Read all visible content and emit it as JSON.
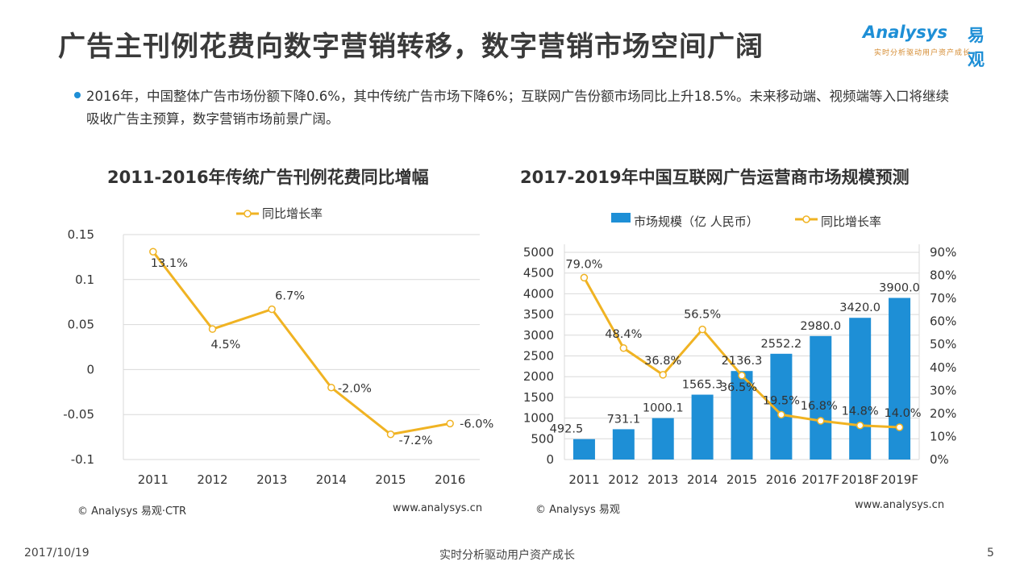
{
  "page": {
    "title": "广告主刊例花费向数字营销转移，数字营销市场空间广阔",
    "bullet": "2016年，中国整体广告市场份额下降0.6%，其中传统广告市场下降6%；互联网广告份额市场同比上升18.5%。未来移动端、视频端等入口将继续吸收广告主预算，数字营销市场前景广阔。"
  },
  "logo": {
    "name_en": "Analysys",
    "name_cn": "易观",
    "tagline": "实时分析驱动用户资产成长"
  },
  "footer": {
    "date": "2017/10/19",
    "center": "实时分析驱动用户资产成长",
    "page_number": "5"
  },
  "colors": {
    "accent": "#1e8fd6",
    "line": "#f0b323",
    "bar": "#1e8fd6",
    "grid": "#d9d9d9"
  },
  "chart_data": [
    {
      "type": "line",
      "title": "2011-2016年传统广告刊例花费同比增幅",
      "legend": [
        "同比增长率"
      ],
      "categories": [
        "2011",
        "2012",
        "2013",
        "2014",
        "2015",
        "2016"
      ],
      "series": [
        {
          "name": "同比增长率",
          "values": [
            0.131,
            0.045,
            0.067,
            -0.02,
            -0.072,
            -0.06
          ]
        }
      ],
      "data_labels": [
        "13.1%",
        "4.5%",
        "6.7%",
        "-2.0%",
        "-7.2%",
        "-6.0%"
      ],
      "y_ticks": [
        "0.15",
        "0.1",
        "0.05",
        "0",
        "-0.05",
        "-0.1"
      ],
      "ylim": [
        -0.1,
        0.15
      ],
      "grid": true,
      "source": "© Analysys 易观·CTR",
      "site": "www.analysys.cn"
    },
    {
      "type": "bar",
      "title": "2017-2019年中国互联网广告运营商市场规模预测",
      "legend": [
        "市场规模（亿 人民币）",
        "同比增长率"
      ],
      "categories": [
        "2011",
        "2012",
        "2013",
        "2014",
        "2015",
        "2016",
        "2017F",
        "2018F",
        "2019F"
      ],
      "series": [
        {
          "name": "市场规模（亿 人民币）",
          "values": [
            492.5,
            731.1,
            1000.1,
            1565.3,
            2136.3,
            2552.2,
            2980.0,
            3420.0,
            3900.0
          ]
        },
        {
          "name": "同比增长率",
          "values": [
            0.79,
            0.484,
            0.368,
            0.565,
            0.365,
            0.195,
            0.168,
            0.148,
            0.14
          ]
        }
      ],
      "bar_labels": [
        "492.5",
        "731.1",
        "1000.1",
        "1565.3",
        "2136.3",
        "2552.2",
        "2980.0",
        "3420.0",
        "3900.0"
      ],
      "line_labels": [
        "79.0%",
        "48.4%",
        "36.8%",
        "56.5%",
        "36.5%",
        "19.5%",
        "16.8%",
        "14.8%",
        "14.0%"
      ],
      "y_ticks": [
        "5000",
        "4500",
        "4000",
        "3500",
        "3000",
        "2500",
        "2000",
        "1500",
        "1000",
        "500",
        "0"
      ],
      "y2_ticks": [
        "90%",
        "80%",
        "70%",
        "60%",
        "50%",
        "40%",
        "30%",
        "20%",
        "10%",
        "0%"
      ],
      "ylim": [
        0,
        5000
      ],
      "y2lim": [
        0,
        0.9
      ],
      "grid": true,
      "source": "© Analysys 易观",
      "site": "www.analysys.cn"
    }
  ]
}
